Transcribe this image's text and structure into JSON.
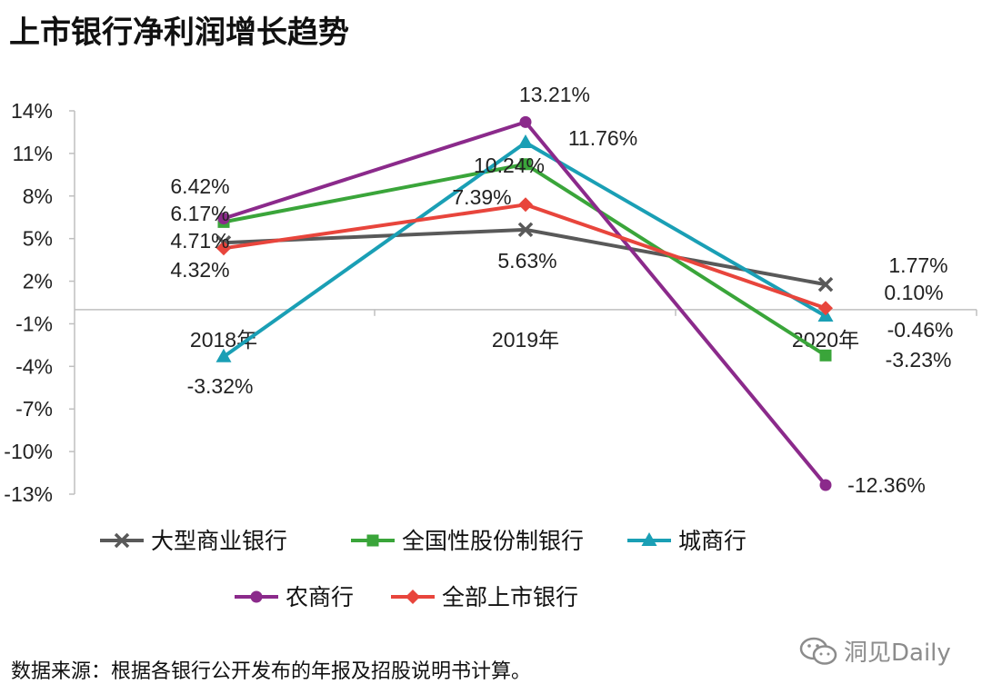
{
  "title": "上市银行净利润增长趋势",
  "source": "数据来源：根据各银行公开发布的年报及招股说明书计算。",
  "watermark": "洞见Daily",
  "chart_data": {
    "type": "line",
    "title": "上市银行净利润增长趋势",
    "categories": [
      "2018年",
      "2019年",
      "2020年"
    ],
    "y_ticks": [
      14,
      11,
      8,
      5,
      2,
      -1,
      -4,
      -7,
      -10,
      -13
    ],
    "y_tick_labels": [
      "14%",
      "11%",
      "8%",
      "5%",
      "2%",
      "-1%",
      "-4%",
      "-7%",
      "-10%",
      "-13%"
    ],
    "ylim": [
      -13,
      14
    ],
    "series": [
      {
        "name": "大型商业银行",
        "color": "#595959",
        "marker": "x",
        "values": [
          4.71,
          5.63,
          1.77
        ],
        "labels": [
          "4.71%",
          "5.63%",
          "1.77%"
        ]
      },
      {
        "name": "全国性股份制银行",
        "color": "#3aa53a",
        "marker": "square",
        "values": [
          6.17,
          10.24,
          -3.23
        ],
        "labels": [
          "6.17%",
          "10.24%",
          "-3.23%"
        ]
      },
      {
        "name": "城商行",
        "color": "#1a9fb5",
        "marker": "triangle",
        "values": [
          -3.32,
          11.76,
          -0.46
        ],
        "labels": [
          "-3.32%",
          "11.76%",
          "-0.46%"
        ]
      },
      {
        "name": "农商行",
        "color": "#8b2a8b",
        "marker": "circle",
        "values": [
          6.42,
          13.21,
          -12.36
        ],
        "labels": [
          "6.42%",
          "13.21%",
          "-12.36%"
        ]
      },
      {
        "name": "全部上市银行",
        "color": "#e8453c",
        "marker": "diamond",
        "values": [
          4.32,
          7.39,
          0.1
        ],
        "labels": [
          "4.32%",
          "7.39%",
          "0.10%"
        ]
      }
    ]
  }
}
